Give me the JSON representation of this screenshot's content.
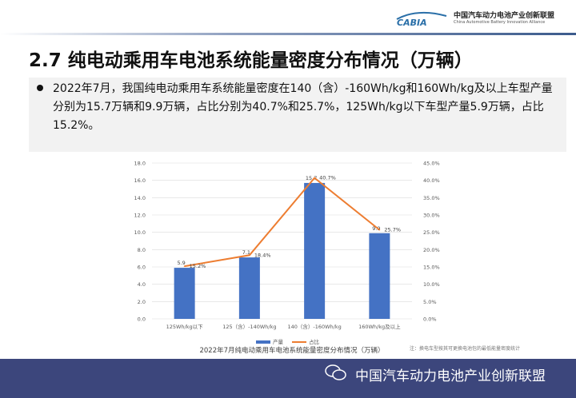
{
  "header": {
    "logo_text": "CABIA",
    "org_name": "中国汽车动力电池产业创新联盟",
    "org_name_en": "China Automotive Battery Innovation Alliance"
  },
  "title": "2.7 纯电动乘用车电池系统能量密度分布情况（万辆）",
  "summary": "2022年7月，我国纯电动乘用车系统能量密度在140（含）-160Wh/kg和160Wh/kg及以上车型产量分别为15.7万辆和9.9万辆，占比分别为40.7%和25.7%，125Wh/kg以下车型产量5.9万辆，占比15.2%。",
  "chart_data": {
    "type": "bar+line",
    "title": "2022年7月纯电动乘用车电池系统能量密度分布情况（万辆）",
    "categories": [
      "125Wh/kg以下",
      "125（含）-140Wh/kg",
      "140（含）-160Wh/kg",
      "160Wh/kg及以上"
    ],
    "series": [
      {
        "name": "产量",
        "type": "bar",
        "axis": "left",
        "values": [
          5.9,
          7.1,
          15.7,
          9.9
        ],
        "labels": [
          "5.9",
          "7.1",
          "15.7",
          "9.9"
        ],
        "color": "#4472c4"
      },
      {
        "name": "占比",
        "type": "line",
        "axis": "right",
        "values": [
          15.2,
          18.4,
          40.7,
          25.7
        ],
        "labels": [
          "15.2%",
          "18.4%",
          "40.7%",
          "25.7%"
        ],
        "color": "#ed7d31"
      }
    ],
    "ylim": [
      0,
      18
    ],
    "yticks": [
      "0.0",
      "2.0",
      "4.0",
      "6.0",
      "8.0",
      "10.0",
      "12.0",
      "14.0",
      "16.0",
      "18.0"
    ],
    "y2lim": [
      0,
      45
    ],
    "y2ticks": [
      "0.0%",
      "5.0%",
      "10.0%",
      "15.0%",
      "20.0%",
      "25.0%",
      "30.0%",
      "35.0%",
      "40.0%",
      "45.0%"
    ],
    "grid": true,
    "legend": "bottom"
  },
  "note": "注：换电车型按其可更换电池包的最低能量密度统计",
  "footer": {
    "text": "中国汽车动力电池产业创新联盟"
  }
}
